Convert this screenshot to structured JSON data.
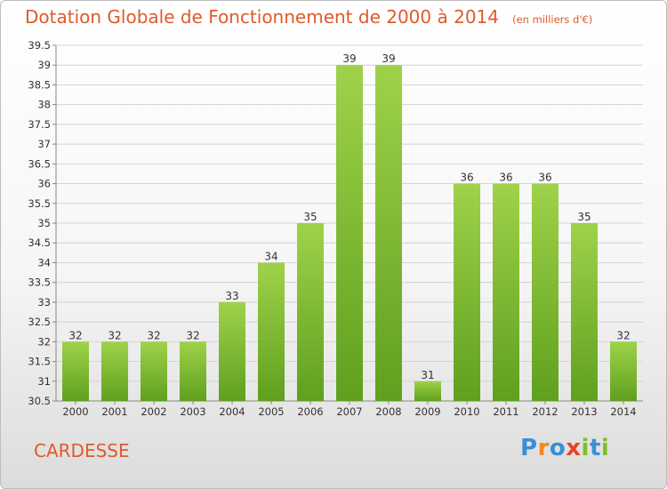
{
  "header": {
    "title": "Dotation Globale de Fonctionnement de 2000 à 2014",
    "unit": "(en milliers d'€)"
  },
  "footer": {
    "commune": "CARDESSE",
    "logo_text": "Proxiti"
  },
  "colors": {
    "title": "#e05a2a",
    "bar_light": "#9fd24a",
    "bar_dark": "#5fa01e",
    "logo": [
      "#3a8fd6",
      "#f08a1d",
      "#3a8fd6",
      "#e54525",
      "#7fbf26",
      "#3a8fd6",
      "#7fbf26"
    ]
  },
  "chart_data": {
    "type": "bar",
    "categories": [
      "2000",
      "2001",
      "2002",
      "2003",
      "2004",
      "2005",
      "2006",
      "2007",
      "2008",
      "2009",
      "2010",
      "2011",
      "2012",
      "2013",
      "2014"
    ],
    "values": [
      32,
      32,
      32,
      32,
      33,
      34,
      35,
      39,
      39,
      31,
      36,
      36,
      36,
      35,
      32
    ],
    "ylim": [
      30.5,
      39.5
    ],
    "yticks": [
      "30.5",
      "31",
      "31.5",
      "32",
      "32.5",
      "33",
      "33.5",
      "34",
      "34.5",
      "35",
      "35.5",
      "36",
      "36.5",
      "37",
      "37.5",
      "38",
      "38.5",
      "39",
      "39.5"
    ],
    "grid": true,
    "title": "Dotation Globale de Fonctionnement de 2000 à 2014",
    "xlabel": "",
    "ylabel": ""
  }
}
